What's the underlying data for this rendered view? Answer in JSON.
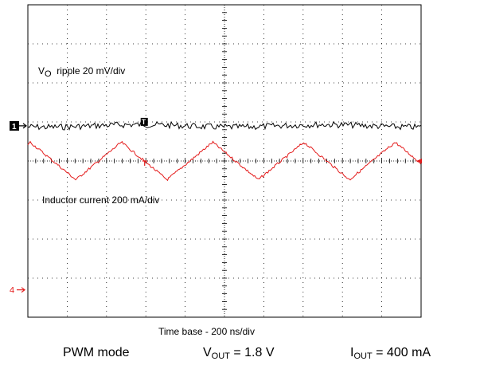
{
  "chart_data": {
    "type": "line",
    "grid": true,
    "grid_divisions": {
      "horizontal": 10,
      "vertical": 8
    },
    "time_base_label": "Time base - 200 ns/div",
    "channels": [
      {
        "marker": "1",
        "label_main": "V",
        "label_sub": "O",
        "label_rest": "ripple 20 mV/div",
        "color": "#000000",
        "waveform": "noise",
        "baseline_div": 3.1,
        "amplitude_div": 0.08
      },
      {
        "marker": "4",
        "label": "Inductor current 200 mA/div",
        "color": "#e41b1b",
        "waveform": "triangle",
        "center_div": 4.0,
        "amplitude_div": 0.48,
        "period_div": 2.32,
        "first_peak_div": 2.38
      }
    ],
    "trigger_marker": "T"
  },
  "footer": {
    "mode": "PWM mode",
    "vout_main": "V",
    "vout_sub": "OUT",
    "vout_rest": " = 1.8 V",
    "iout_main": "I",
    "iout_sub": "OUT",
    "iout_rest": " = 400 mA"
  }
}
